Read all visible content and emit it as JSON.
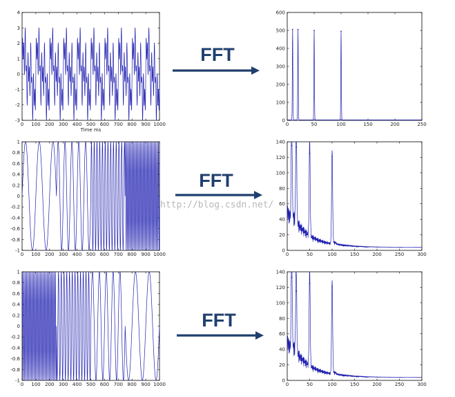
{
  "colors": {
    "signal": "#1f1fb0",
    "arrow": "#1f3f6e",
    "axis": "#000000"
  },
  "watermark": "http://blog.csdn.net/",
  "chart_data": [
    {
      "type": "line",
      "id": "row1-time",
      "title": "",
      "xlabel": "Time  ms",
      "ylabel": "",
      "xlim": [
        0,
        1000
      ],
      "ylim": [
        -3,
        4
      ],
      "xticks": [
        "0",
        "100",
        "200",
        "300",
        "400",
        "500",
        "600",
        "700",
        "800",
        "900",
        "1000"
      ],
      "yticks": [
        "-3",
        "-2",
        "-1",
        "0",
        "1",
        "2",
        "3",
        "4"
      ],
      "signal": {
        "kind": "sum-of-sines",
        "frequencies_hz": [
          10,
          20,
          50,
          100
        ]
      }
    },
    {
      "type": "line",
      "id": "row1-fft",
      "title": "",
      "xlabel": "",
      "ylabel": "",
      "xlim": [
        0,
        250
      ],
      "ylim": [
        0,
        600
      ],
      "xticks": [
        "0",
        "50",
        "100",
        "150",
        "200",
        "250"
      ],
      "yticks": [
        "0",
        "100",
        "200",
        "300",
        "400",
        "500",
        "600"
      ],
      "peaks": [
        {
          "x": 10,
          "y": 505
        },
        {
          "x": 20,
          "y": 505
        },
        {
          "x": 50,
          "y": 500
        },
        {
          "x": 100,
          "y": 495
        }
      ]
    },
    {
      "type": "line",
      "id": "row2-time",
      "title": "",
      "xlabel": "",
      "ylabel": "",
      "xlim": [
        0,
        1000
      ],
      "ylim": [
        -1,
        1
      ],
      "xticks": [
        "0",
        "100",
        "200",
        "300",
        "400",
        "500",
        "600",
        "700",
        "800",
        "900",
        "1000"
      ],
      "yticks": [
        "-1",
        "-0.8",
        "-0.6",
        "-0.4",
        "-0.2",
        "0",
        "0.2",
        "0.4",
        "0.6",
        "0.8",
        "1"
      ],
      "signal": {
        "kind": "piecewise-sine",
        "segments": [
          {
            "from": 0,
            "to": 250,
            "freq_hz": 10
          },
          {
            "from": 250,
            "to": 500,
            "freq_hz": 20
          },
          {
            "from": 500,
            "to": 750,
            "freq_hz": 50
          },
          {
            "from": 750,
            "to": 1000,
            "freq_hz": 100
          }
        ]
      }
    },
    {
      "type": "line",
      "id": "row2-fft",
      "title": "",
      "xlabel": "",
      "ylabel": "",
      "xlim": [
        0,
        300
      ],
      "ylim": [
        0,
        140
      ],
      "xticks": [
        "0",
        "50",
        "100",
        "150",
        "200",
        "250",
        "300"
      ],
      "yticks": [
        "0",
        "20",
        "40",
        "60",
        "80",
        "100",
        "120",
        "140"
      ],
      "peaks": [
        {
          "x": 10,
          "y": 135
        },
        {
          "x": 20,
          "y": 133
        },
        {
          "x": 50,
          "y": 125
        },
        {
          "x": 100,
          "y": 121
        }
      ]
    },
    {
      "type": "line",
      "id": "row3-time",
      "title": "",
      "xlabel": "",
      "ylabel": "",
      "xlim": [
        0,
        1000
      ],
      "ylim": [
        -1,
        1
      ],
      "xticks": [
        "0",
        "100",
        "200",
        "300",
        "400",
        "500",
        "600",
        "700",
        "800",
        "900",
        "1000"
      ],
      "yticks": [
        "-1",
        "-0.8",
        "-0.6",
        "-0.4",
        "-0.2",
        "0",
        "0.2",
        "0.4",
        "0.6",
        "0.8",
        "1"
      ],
      "signal": {
        "kind": "piecewise-sine",
        "segments": [
          {
            "from": 0,
            "to": 250,
            "freq_hz": 100
          },
          {
            "from": 250,
            "to": 500,
            "freq_hz": 50
          },
          {
            "from": 500,
            "to": 750,
            "freq_hz": 20
          },
          {
            "from": 750,
            "to": 1000,
            "freq_hz": 10
          }
        ]
      }
    },
    {
      "type": "line",
      "id": "row3-fft",
      "title": "",
      "xlabel": "",
      "ylabel": "",
      "xlim": [
        0,
        300
      ],
      "ylim": [
        0,
        140
      ],
      "xticks": [
        "0",
        "50",
        "100",
        "150",
        "200",
        "250",
        "300"
      ],
      "yticks": [
        "0",
        "20",
        "40",
        "60",
        "80",
        "100",
        "120",
        "140"
      ],
      "peaks": [
        {
          "x": 10,
          "y": 133
        },
        {
          "x": 20,
          "y": 115
        },
        {
          "x": 50,
          "y": 125
        },
        {
          "x": 100,
          "y": 121
        }
      ]
    }
  ],
  "arrows": [
    {
      "label": "FFT"
    },
    {
      "label": "FFT"
    },
    {
      "label": "FFT"
    }
  ]
}
